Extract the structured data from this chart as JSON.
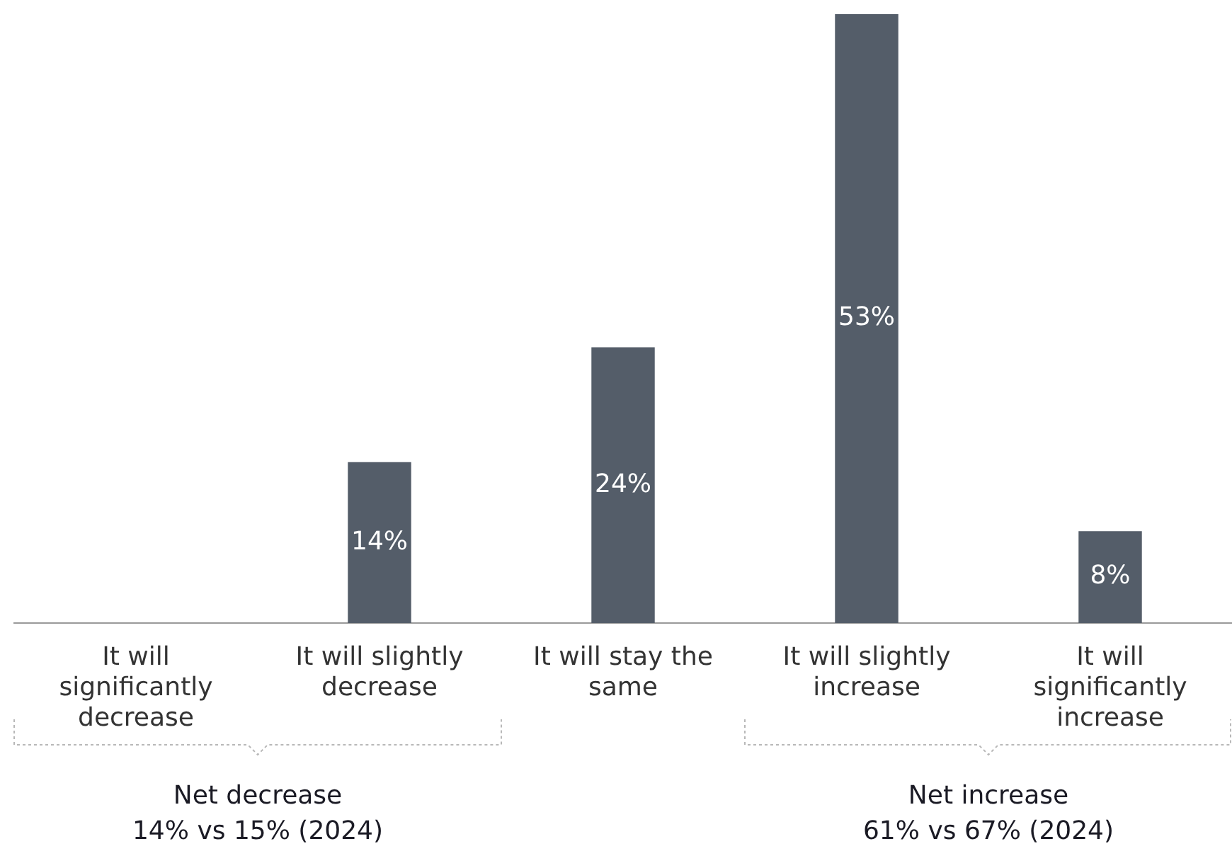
{
  "chart_data": {
    "type": "bar",
    "categories": [
      "It will significantly decrease",
      "It will slightly decrease",
      "It will stay the same",
      "It will slightly increase",
      "It will significantly increase"
    ],
    "values": [
      0,
      14,
      24,
      53,
      8
    ],
    "value_labels": [
      null,
      "14%",
      "24%",
      "53%",
      "8%"
    ],
    "color": "#545d69",
    "grid": false,
    "legend": false,
    "annotations": [
      "Net decrease",
      "14% vs 15% (2024)",
      "Net increase",
      "61% vs 67% (2024)"
    ]
  }
}
